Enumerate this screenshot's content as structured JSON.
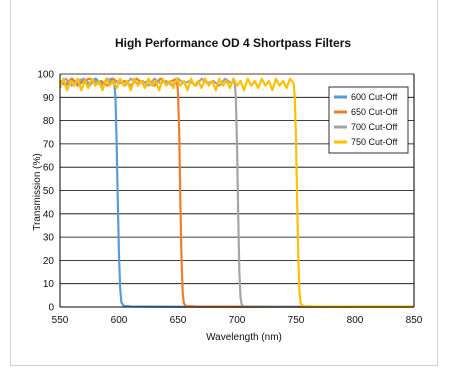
{
  "chart_data": {
    "type": "line",
    "title": "High Performance OD 4 Shortpass Filters",
    "xlabel": "Wavelength (nm)",
    "ylabel": "Transmission (%)",
    "xlim": [
      550,
      850
    ],
    "ylim": [
      0,
      100
    ],
    "x_ticks": [
      "550",
      "600",
      "650",
      "700",
      "750",
      "800",
      "850"
    ],
    "y_ticks": [
      "0",
      "10",
      "20",
      "30",
      "40",
      "50",
      "60",
      "70",
      "80",
      "90",
      "100"
    ],
    "grid": "horizontal",
    "legend_position": "top-right",
    "series": [
      {
        "name": "600 Cut-Off",
        "color": "#5b9bd5",
        "points": [
          [
            550,
            97
          ],
          [
            555,
            95
          ],
          [
            560,
            98
          ],
          [
            565,
            96
          ],
          [
            570,
            97
          ],
          [
            575,
            95
          ],
          [
            580,
            98
          ],
          [
            585,
            96
          ],
          [
            590,
            97
          ],
          [
            594,
            98
          ],
          [
            596,
            96
          ],
          [
            597,
            90
          ],
          [
            598,
            70
          ],
          [
            599,
            45
          ],
          [
            600,
            22
          ],
          [
            601,
            8
          ],
          [
            602,
            2
          ],
          [
            604,
            0.5
          ],
          [
            610,
            0.2
          ],
          [
            650,
            0.1
          ],
          [
            700,
            0.1
          ],
          [
            750,
            0.1
          ],
          [
            800,
            0.1
          ],
          [
            850,
            0.1
          ]
        ]
      },
      {
        "name": "650 Cut-Off",
        "color": "#ed7d31",
        "points": [
          [
            550,
            97
          ],
          [
            555,
            96
          ],
          [
            560,
            98
          ],
          [
            565,
            95
          ],
          [
            570,
            97
          ],
          [
            575,
            98
          ],
          [
            580,
            96
          ],
          [
            585,
            97
          ],
          [
            590,
            95
          ],
          [
            595,
            98
          ],
          [
            600,
            96
          ],
          [
            605,
            97
          ],
          [
            610,
            95
          ],
          [
            615,
            98
          ],
          [
            620,
            96
          ],
          [
            625,
            97
          ],
          [
            630,
            95
          ],
          [
            635,
            98
          ],
          [
            640,
            96
          ],
          [
            645,
            97
          ],
          [
            649,
            98
          ],
          [
            650,
            92
          ],
          [
            651,
            75
          ],
          [
            652,
            45
          ],
          [
            653,
            20
          ],
          [
            654,
            6
          ],
          [
            655,
            1.5
          ],
          [
            657,
            0.4
          ],
          [
            665,
            0.2
          ],
          [
            700,
            0.1
          ],
          [
            750,
            0.1
          ],
          [
            800,
            0.1
          ],
          [
            850,
            0.1
          ]
        ]
      },
      {
        "name": "700 Cut-Off",
        "color": "#a5a5a5",
        "points": [
          [
            550,
            96
          ],
          [
            555,
            98
          ],
          [
            560,
            95
          ],
          [
            565,
            97
          ],
          [
            570,
            98
          ],
          [
            575,
            96
          ],
          [
            580,
            97
          ],
          [
            585,
            95
          ],
          [
            590,
            98
          ],
          [
            595,
            96
          ],
          [
            600,
            97
          ],
          [
            605,
            95
          ],
          [
            610,
            98
          ],
          [
            615,
            96
          ],
          [
            620,
            97
          ],
          [
            625,
            95
          ],
          [
            630,
            98
          ],
          [
            635,
            96
          ],
          [
            640,
            97
          ],
          [
            645,
            95
          ],
          [
            650,
            98
          ],
          [
            655,
            96
          ],
          [
            660,
            97
          ],
          [
            665,
            95
          ],
          [
            670,
            98
          ],
          [
            675,
            96
          ],
          [
            680,
            97
          ],
          [
            685,
            95
          ],
          [
            690,
            98
          ],
          [
            695,
            96
          ],
          [
            698,
            97
          ],
          [
            699,
            90
          ],
          [
            700,
            70
          ],
          [
            701,
            40
          ],
          [
            702,
            15
          ],
          [
            703,
            4
          ],
          [
            704,
            1
          ],
          [
            706,
            0.3
          ],
          [
            715,
            0.2
          ],
          [
            750,
            0.1
          ],
          [
            800,
            0.1
          ],
          [
            850,
            0.1
          ]
        ]
      },
      {
        "name": "750 Cut-Off",
        "color": "#ffc000",
        "points": [
          [
            550,
            94
          ],
          [
            553,
            98
          ],
          [
            556,
            93
          ],
          [
            559,
            97
          ],
          [
            562,
            95
          ],
          [
            565,
            98
          ],
          [
            568,
            93
          ],
          [
            571,
            97
          ],
          [
            574,
            94
          ],
          [
            577,
            98
          ],
          [
            580,
            95
          ],
          [
            583,
            97
          ],
          [
            586,
            93
          ],
          [
            589,
            98
          ],
          [
            592,
            95
          ],
          [
            595,
            97
          ],
          [
            598,
            94
          ],
          [
            601,
            98
          ],
          [
            604,
            95
          ],
          [
            607,
            97
          ],
          [
            610,
            93
          ],
          [
            613,
            98
          ],
          [
            616,
            95
          ],
          [
            619,
            97
          ],
          [
            622,
            94
          ],
          [
            625,
            98
          ],
          [
            628,
            95
          ],
          [
            631,
            97
          ],
          [
            634,
            93
          ],
          [
            637,
            98
          ],
          [
            640,
            95
          ],
          [
            643,
            97
          ],
          [
            646,
            94
          ],
          [
            649,
            98
          ],
          [
            652,
            95
          ],
          [
            655,
            97
          ],
          [
            658,
            93
          ],
          [
            661,
            98
          ],
          [
            664,
            95
          ],
          [
            667,
            97
          ],
          [
            670,
            94
          ],
          [
            673,
            98
          ],
          [
            676,
            95
          ],
          [
            679,
            97
          ],
          [
            682,
            93
          ],
          [
            685,
            98
          ],
          [
            688,
            95
          ],
          [
            691,
            97
          ],
          [
            694,
            94
          ],
          [
            697,
            98
          ],
          [
            700,
            95
          ],
          [
            703,
            97
          ],
          [
            706,
            93
          ],
          [
            709,
            98
          ],
          [
            712,
            95
          ],
          [
            715,
            97
          ],
          [
            718,
            94
          ],
          [
            721,
            98
          ],
          [
            724,
            95
          ],
          [
            727,
            97
          ],
          [
            730,
            93
          ],
          [
            733,
            98
          ],
          [
            736,
            95
          ],
          [
            739,
            97
          ],
          [
            742,
            94
          ],
          [
            745,
            98
          ],
          [
            748,
            96
          ],
          [
            749,
            90
          ],
          [
            750,
            72
          ],
          [
            751,
            45
          ],
          [
            752,
            20
          ],
          [
            753,
            6
          ],
          [
            754,
            1.5
          ],
          [
            756,
            0.4
          ],
          [
            765,
            0.2
          ],
          [
            800,
            0.1
          ],
          [
            850,
            0.1
          ]
        ]
      }
    ]
  }
}
